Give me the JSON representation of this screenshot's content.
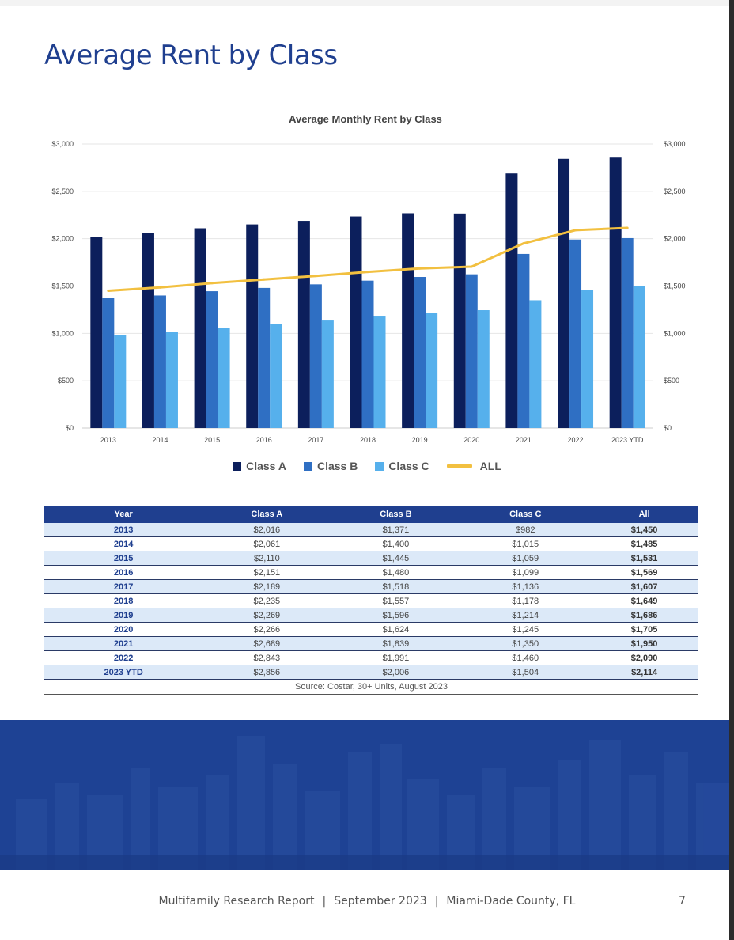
{
  "page": {
    "title": "Average Rent by Class",
    "footer": {
      "report": "Multifamily Research Report",
      "separator": "|",
      "date": "September 2023",
      "location": "Miami-Dade County, FL",
      "page_number": "7"
    }
  },
  "colors": {
    "title": "#1f3f8f",
    "class_a": "#0c1f5c",
    "class_b": "#2f6fc3",
    "class_c": "#56b0ec",
    "all": "#f2c040",
    "table_header": "#1f3f8f",
    "table_alt_row": "#dce9f8",
    "banner": "#1e4294"
  },
  "chart_data": {
    "type": "bar",
    "title": "Average Monthly Rent by Class",
    "categories": [
      "2013",
      "2014",
      "2015",
      "2016",
      "2017",
      "2018",
      "2019",
      "2020",
      "2021",
      "2022",
      "2023 YTD"
    ],
    "series": [
      {
        "name": "Class A",
        "type": "bar",
        "color": "#0c1f5c",
        "values": [
          2016,
          2061,
          2110,
          2151,
          2189,
          2235,
          2269,
          2266,
          2689,
          2843,
          2856
        ]
      },
      {
        "name": "Class B",
        "type": "bar",
        "color": "#2f6fc3",
        "values": [
          1371,
          1400,
          1445,
          1480,
          1518,
          1557,
          1596,
          1624,
          1839,
          1991,
          2006
        ]
      },
      {
        "name": "Class C",
        "type": "bar",
        "color": "#56b0ec",
        "values": [
          982,
          1015,
          1059,
          1099,
          1136,
          1178,
          1214,
          1245,
          1350,
          1460,
          1504
        ]
      },
      {
        "name": "ALL",
        "type": "line",
        "color": "#f2c040",
        "values": [
          1450,
          1485,
          1531,
          1569,
          1607,
          1649,
          1686,
          1705,
          1950,
          2090,
          2114
        ]
      }
    ],
    "ylim": [
      0,
      3000
    ],
    "y_ticks": [
      "$0",
      "$500",
      "$1,000",
      "$1,500",
      "$2,000",
      "$2,500",
      "$3,000"
    ],
    "y_tick_values": [
      0,
      500,
      1000,
      1500,
      2000,
      2500,
      3000
    ],
    "secondary_y_axis": true,
    "grid": true,
    "legend_position": "bottom"
  },
  "table": {
    "headers": [
      "Year",
      "Class A",
      "Class B",
      "Class C",
      "All"
    ],
    "rows": [
      [
        "2013",
        "$2,016",
        "$1,371",
        "$982",
        "$1,450"
      ],
      [
        "2014",
        "$2,061",
        "$1,400",
        "$1,015",
        "$1,485"
      ],
      [
        "2015",
        "$2,110",
        "$1,445",
        "$1,059",
        "$1,531"
      ],
      [
        "2016",
        "$2,151",
        "$1,480",
        "$1,099",
        "$1,569"
      ],
      [
        "2017",
        "$2,189",
        "$1,518",
        "$1,136",
        "$1,607"
      ],
      [
        "2018",
        "$2,235",
        "$1,557",
        "$1,178",
        "$1,649"
      ],
      [
        "2019",
        "$2,269",
        "$1,596",
        "$1,214",
        "$1,686"
      ],
      [
        "2020",
        "$2,266",
        "$1,624",
        "$1,245",
        "$1,705"
      ],
      [
        "2021",
        "$2,689",
        "$1,839",
        "$1,350",
        "$1,950"
      ],
      [
        "2022",
        "$2,843",
        "$1,991",
        "$1,460",
        "$2,090"
      ],
      [
        "2023 YTD",
        "$2,856",
        "$2,006",
        "$1,504",
        "$2,114"
      ]
    ],
    "source": "Source: Costar, 30+ Units, August 2023"
  }
}
